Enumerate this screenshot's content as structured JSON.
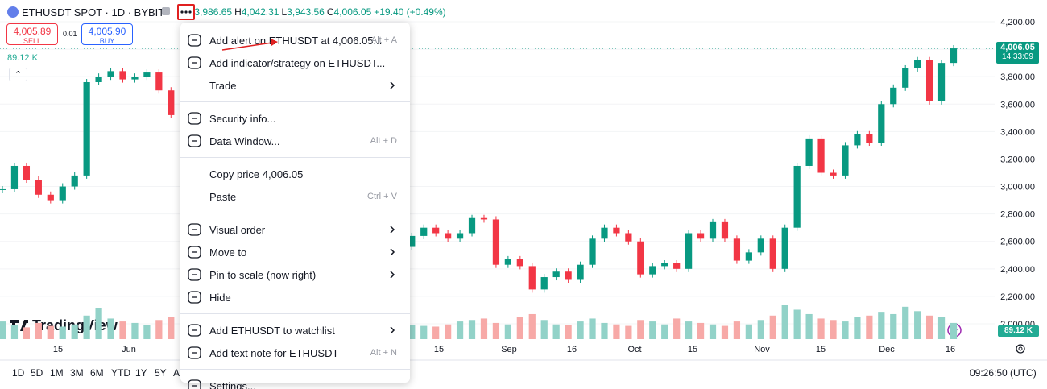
{
  "header": {
    "symbol": "ETHUSDT SPOT · 1D · BYBIT",
    "ohlc": [
      {
        "key": "O",
        "value": "3,986.65"
      },
      {
        "key": "H",
        "value": "4,042.31"
      },
      {
        "key": "L",
        "value": "3,943.56"
      },
      {
        "key": "C",
        "value": "4,006.05"
      }
    ],
    "change": "+19.40 (+0.49%)"
  },
  "trade": {
    "sell_price": "4,005.89",
    "sell": "SELL",
    "spread": "0.01",
    "buy_price": "4,005.90",
    "buy": "BUY"
  },
  "volume": {
    "legend": "89.12 K",
    "axis_label": "89.12 K"
  },
  "price_axis": {
    "ticks": [
      {
        "value": 4200,
        "label": "4,200.00"
      },
      {
        "value": 4000,
        "label": "4,000.00"
      },
      {
        "value": 3800,
        "label": "3,800.00"
      },
      {
        "value": 3600,
        "label": "3,600.00"
      },
      {
        "value": 3400,
        "label": "3,400.00"
      },
      {
        "value": 3200,
        "label": "3,200.00"
      },
      {
        "value": 3000,
        "label": "3,000.00"
      },
      {
        "value": 2800,
        "label": "2,800.00"
      },
      {
        "value": 2600,
        "label": "2,600.00"
      },
      {
        "value": 2400,
        "label": "2,400.00"
      },
      {
        "value": 2200,
        "label": "2,200.00"
      },
      {
        "value": 2000,
        "label": "2,000.00"
      }
    ]
  },
  "last_price": {
    "value": 4006.05,
    "label": "4,006.05",
    "countdown": "14:33:09"
  },
  "time_axis": [
    "15",
    "Jun",
    "15",
    "Sep",
    "16",
    "Oct",
    "15",
    "Nov",
    "15",
    "Dec",
    "16"
  ],
  "candles": {
    "closes": [
      2980,
      3150,
      3050,
      2940,
      2900,
      3000,
      3080,
      3760,
      3800,
      3840,
      3780,
      3800,
      3830,
      3700,
      3520,
      3450,
      3580,
      3400,
      3300,
      3100,
      3350,
      3440,
      3480,
      3200,
      3250,
      3150,
      2900,
      2700,
      2650,
      2600,
      2700,
      2550,
      2620,
      2560,
      2640,
      2700,
      2660,
      2620,
      2660,
      2770,
      2760,
      2430,
      2470,
      2420,
      2250,
      2340,
      2380,
      2320,
      2430,
      2620,
      2700,
      2660,
      2600,
      2360,
      2420,
      2440,
      2400,
      2660,
      2620,
      2740,
      2620,
      2460,
      2520,
      2620,
      2400,
      2700,
      3150,
      3350,
      3100,
      3080,
      3300,
      3380,
      3320,
      3600,
      3720,
      3860,
      3920,
      3620,
      3900,
      4006.05
    ],
    "volumes": [
      120,
      95,
      80,
      110,
      90,
      85,
      100,
      160,
      210,
      140,
      120,
      110,
      95,
      130,
      150,
      120,
      110,
      100,
      130,
      150,
      120,
      110,
      100,
      140,
      130,
      160,
      150,
      120,
      110,
      100,
      90,
      110,
      100,
      110,
      95,
      90,
      85,
      100,
      120,
      130,
      140,
      110,
      100,
      150,
      170,
      130,
      100,
      95,
      120,
      140,
      110,
      100,
      90,
      130,
      120,
      100,
      140,
      120,
      110,
      100,
      90,
      120,
      100,
      130,
      160,
      230,
      200,
      170,
      140,
      130,
      120,
      150,
      160,
      180,
      170,
      220,
      190,
      160,
      150,
      110
    ]
  },
  "watermark": "TradingView",
  "menu": [
    [
      {
        "label": "Add alert on ETHUSDT at 4,006.05...",
        "shortcut": "Alt + A",
        "icon": true
      },
      {
        "label": "Add indicator/strategy on ETHUSDT...",
        "icon": true
      },
      {
        "label": "Trade",
        "submenu": true
      }
    ],
    [
      {
        "label": "Security info...",
        "icon": true
      },
      {
        "label": "Data Window...",
        "shortcut": "Alt + D",
        "icon": true
      }
    ],
    [
      {
        "label": "Copy price 4,006.05"
      },
      {
        "label": "Paste",
        "shortcut": "Ctrl + V"
      }
    ],
    [
      {
        "label": "Visual order",
        "submenu": true,
        "icon": true
      },
      {
        "label": "Move to",
        "submenu": true,
        "icon": true
      },
      {
        "label": "Pin to scale (now right)",
        "submenu": true,
        "icon": true
      },
      {
        "label": "Hide",
        "icon": true
      }
    ],
    [
      {
        "label": "Add ETHUSDT to watchlist",
        "submenu": true,
        "icon": true
      },
      {
        "label": "Add text note for ETHUSDT",
        "shortcut": "Alt + N",
        "icon": true
      }
    ],
    [
      {
        "label": "Settings...",
        "icon": true
      }
    ]
  ],
  "bottom": {
    "ranges": [
      "1D",
      "5D",
      "1M",
      "3M",
      "6M",
      "YTD",
      "1Y",
      "5Y",
      "A"
    ],
    "clock": "09:26:50 (UTC)"
  }
}
